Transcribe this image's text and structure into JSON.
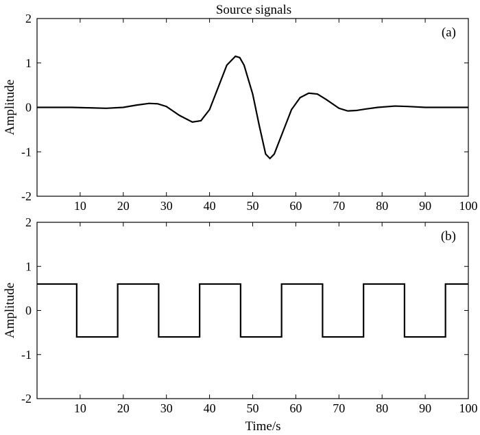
{
  "figure": {
    "title": "Source signals"
  },
  "chart_data": [
    {
      "type": "line",
      "panel_label": "(a)",
      "title": "Source signals",
      "xlabel": "",
      "ylabel": "Amplitude",
      "xlim": [
        0,
        100
      ],
      "ylim": [
        -2,
        2
      ],
      "xticks": [
        10,
        20,
        30,
        40,
        50,
        60,
        70,
        80,
        90,
        100
      ],
      "yticks": [
        -2,
        -1,
        0,
        1,
        2
      ],
      "grid": false,
      "series": [
        {
          "color": "#000000",
          "points": [
            [
              0,
              0.0
            ],
            [
              4,
              0.0
            ],
            [
              8,
              0.0
            ],
            [
              12,
              -0.01
            ],
            [
              16,
              -0.02
            ],
            [
              20,
              0.0
            ],
            [
              23,
              0.05
            ],
            [
              26,
              0.09
            ],
            [
              28,
              0.08
            ],
            [
              30,
              0.02
            ],
            [
              33,
              -0.18
            ],
            [
              36,
              -0.33
            ],
            [
              38,
              -0.3
            ],
            [
              40,
              -0.05
            ],
            [
              42,
              0.45
            ],
            [
              44,
              0.95
            ],
            [
              46,
              1.15
            ],
            [
              47,
              1.12
            ],
            [
              48,
              0.95
            ],
            [
              50,
              0.3
            ],
            [
              51.5,
              -0.4
            ],
            [
              53,
              -1.05
            ],
            [
              54,
              -1.15
            ],
            [
              55,
              -1.05
            ],
            [
              57,
              -0.55
            ],
            [
              59,
              -0.05
            ],
            [
              61,
              0.22
            ],
            [
              63,
              0.32
            ],
            [
              65,
              0.3
            ],
            [
              67,
              0.18
            ],
            [
              70,
              -0.02
            ],
            [
              72,
              -0.08
            ],
            [
              74,
              -0.07
            ],
            [
              76,
              -0.04
            ],
            [
              79,
              0.0
            ],
            [
              83,
              0.03
            ],
            [
              86,
              0.02
            ],
            [
              90,
              0.0
            ],
            [
              95,
              0.0
            ],
            [
              100,
              0.0
            ]
          ]
        }
      ]
    },
    {
      "type": "line",
      "panel_label": "(b)",
      "title": "",
      "xlabel": "Time/s",
      "ylabel": "Amplitude",
      "xlim": [
        0,
        100
      ],
      "ylim": [
        -2,
        2
      ],
      "xticks": [
        10,
        20,
        30,
        40,
        50,
        60,
        70,
        80,
        90,
        100
      ],
      "yticks": [
        -2,
        -1,
        0,
        1,
        2
      ],
      "grid": false,
      "series": [
        {
          "color": "#000000",
          "points": [
            [
              0,
              0.6
            ],
            [
              9.2,
              0.6
            ],
            [
              9.2,
              -0.6
            ],
            [
              18.7,
              -0.6
            ],
            [
              18.7,
              0.6
            ],
            [
              28.2,
              0.6
            ],
            [
              28.2,
              -0.6
            ],
            [
              37.7,
              -0.6
            ],
            [
              37.7,
              0.6
            ],
            [
              47.2,
              0.6
            ],
            [
              47.2,
              -0.6
            ],
            [
              56.7,
              -0.6
            ],
            [
              56.7,
              0.6
            ],
            [
              66.2,
              0.6
            ],
            [
              66.2,
              -0.6
            ],
            [
              75.7,
              -0.6
            ],
            [
              75.7,
              0.6
            ],
            [
              85.2,
              0.6
            ],
            [
              85.2,
              -0.6
            ],
            [
              94.7,
              -0.6
            ],
            [
              94.7,
              0.6
            ],
            [
              100,
              0.6
            ]
          ]
        }
      ]
    }
  ]
}
